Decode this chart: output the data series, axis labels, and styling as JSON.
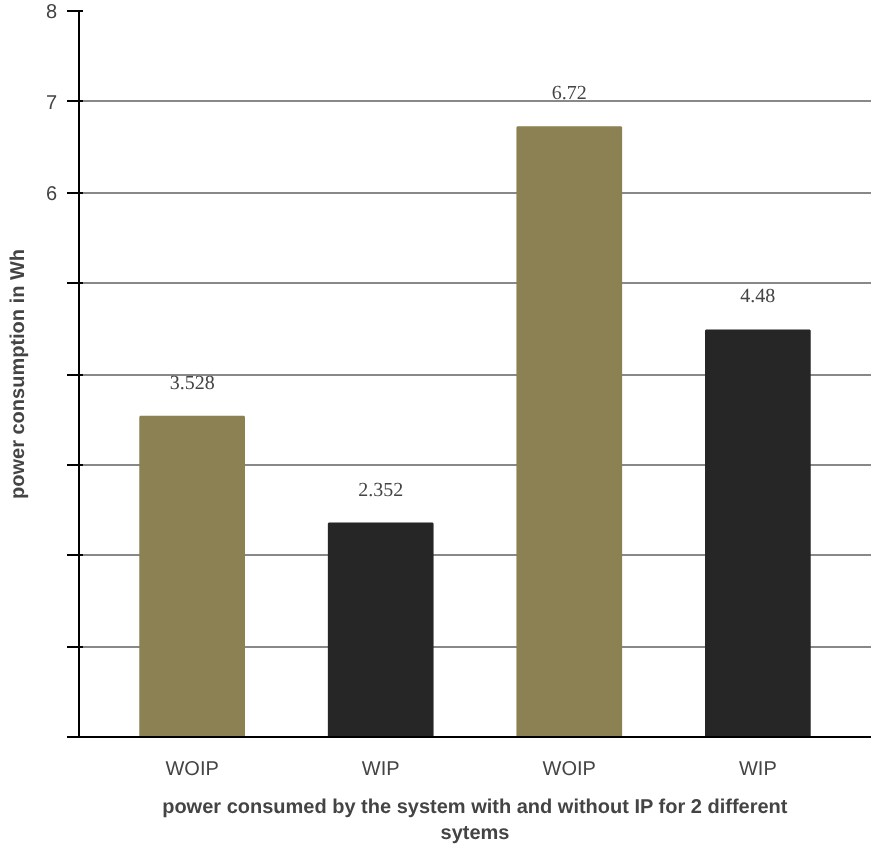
{
  "chart_data": {
    "type": "bar",
    "xlabel": "power consumed by the system with and without IP for 2 different\nsytems",
    "ylabel": "power consumption in Wh",
    "categories": [
      "WOIP",
      "WIP",
      "WOIP",
      "WIP"
    ],
    "values": [
      3.528,
      2.352,
      6.72,
      4.48
    ],
    "colors": [
      "#8b8152",
      "#262626",
      "#8b8152",
      "#262626"
    ],
    "ylim": [
      0,
      8
    ],
    "yticks": [
      {
        "value": 0,
        "label": null
      },
      {
        "value": 1,
        "label": null
      },
      {
        "value": 2,
        "label": null
      },
      {
        "value": 3,
        "label": null
      },
      {
        "value": 4,
        "label": null
      },
      {
        "value": 5,
        "label": null
      },
      6,
      7,
      8
    ],
    "grid": "y",
    "data_labels": true
  }
}
